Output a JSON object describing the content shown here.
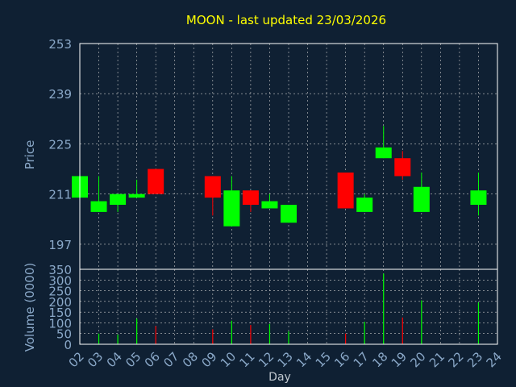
{
  "colors": {
    "background": "#0f2033",
    "up": "#00ff00",
    "down": "#ff0000",
    "grid": "#c8c8c8",
    "title": "#ffff00",
    "axis_text": "#8aa8c8"
  },
  "chart_data": [
    {
      "type": "candlestick",
      "title": "MOON - last updated 23/03/2026",
      "ylabel": "Price",
      "ylim": [
        190,
        253
      ],
      "yticks": [
        197,
        211,
        225,
        239,
        253
      ],
      "grid": true,
      "x_ticks": [
        "02",
        "03",
        "04",
        "05",
        "06",
        "07",
        "08",
        "09",
        "10",
        "11",
        "12",
        "13",
        "14",
        "15",
        "16",
        "17",
        "18",
        "19",
        "20",
        "21",
        "22",
        "23",
        "24"
      ],
      "series": [
        {
          "day": "02",
          "open": 210,
          "close": 216,
          "high": 216,
          "low": 210
        },
        {
          "day": "03",
          "open": 206,
          "close": 209,
          "high": 216,
          "low": 206
        },
        {
          "day": "04",
          "open": 208,
          "close": 211,
          "high": 211,
          "low": 206
        },
        {
          "day": "05",
          "open": 210,
          "close": 211,
          "high": 215,
          "low": 210
        },
        {
          "day": "06",
          "open": 218,
          "close": 211,
          "high": 218,
          "low": 211
        },
        {
          "day": "09",
          "open": 216,
          "close": 210,
          "high": 216,
          "low": 205
        },
        {
          "day": "10",
          "open": 202,
          "close": 212,
          "high": 216,
          "low": 202
        },
        {
          "day": "11",
          "open": 212,
          "close": 208,
          "high": 212,
          "low": 206
        },
        {
          "day": "12",
          "open": 207,
          "close": 209,
          "high": 211,
          "low": 207
        },
        {
          "day": "13",
          "open": 203,
          "close": 208,
          "high": 208,
          "low": 203
        },
        {
          "day": "16",
          "open": 217,
          "close": 207,
          "high": 217,
          "low": 207
        },
        {
          "day": "17",
          "open": 206,
          "close": 210,
          "high": 211,
          "low": 206
        },
        {
          "day": "18",
          "open": 221,
          "close": 224,
          "high": 230,
          "low": 221
        },
        {
          "day": "19",
          "open": 221,
          "close": 216,
          "high": 223,
          "low": 215
        },
        {
          "day": "20",
          "open": 206,
          "close": 213,
          "high": 217,
          "low": 206
        },
        {
          "day": "23",
          "open": 208,
          "close": 212,
          "high": 217,
          "low": 205
        }
      ]
    },
    {
      "type": "bar",
      "xlabel": "Day",
      "ylabel": "Volume (0000)",
      "ylim": [
        0,
        350
      ],
      "yticks": [
        0,
        50,
        100,
        150,
        200,
        250,
        300,
        350
      ],
      "grid": true,
      "series": [
        {
          "day": "03",
          "volume": 50,
          "direction": "up"
        },
        {
          "day": "04",
          "volume": 45,
          "direction": "up"
        },
        {
          "day": "05",
          "volume": 120,
          "direction": "up"
        },
        {
          "day": "06",
          "volume": 85,
          "direction": "down"
        },
        {
          "day": "09",
          "volume": 70,
          "direction": "down"
        },
        {
          "day": "10",
          "volume": 110,
          "direction": "up"
        },
        {
          "day": "11",
          "volume": 90,
          "direction": "down"
        },
        {
          "day": "12",
          "volume": 95,
          "direction": "up"
        },
        {
          "day": "13",
          "volume": 60,
          "direction": "up"
        },
        {
          "day": "16",
          "volume": 50,
          "direction": "down"
        },
        {
          "day": "17",
          "volume": 105,
          "direction": "up"
        },
        {
          "day": "18",
          "volume": 330,
          "direction": "up"
        },
        {
          "day": "19",
          "volume": 125,
          "direction": "down"
        },
        {
          "day": "20",
          "volume": 205,
          "direction": "up"
        },
        {
          "day": "23",
          "volume": 195,
          "direction": "up"
        }
      ]
    }
  ]
}
